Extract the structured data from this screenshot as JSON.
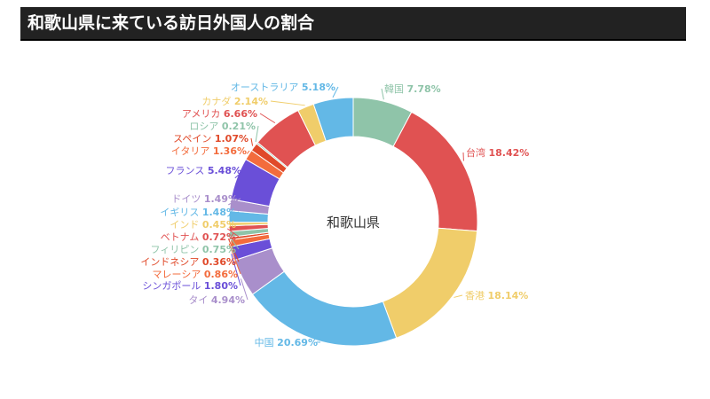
{
  "header": {
    "title": "和歌山県に来ている訪日外国人の割合"
  },
  "chart_data": {
    "type": "pie",
    "donut": true,
    "center_label": "和歌山県",
    "unit": "%",
    "slices": [
      {
        "name": "韓国",
        "value": 7.78,
        "color": "#8fc4a9"
      },
      {
        "name": "台湾",
        "value": 18.42,
        "color": "#e05252"
      },
      {
        "name": "香港",
        "value": 18.14,
        "color": "#f0cd6a"
      },
      {
        "name": "中国",
        "value": 20.69,
        "color": "#63b8e6"
      },
      {
        "name": "タイ",
        "value": 4.94,
        "color": "#a98fcb"
      },
      {
        "name": "シンガポール",
        "value": 1.8,
        "color": "#6a4fd8"
      },
      {
        "name": "マレーシア",
        "value": 0.86,
        "color": "#f36c3d"
      },
      {
        "name": "インドネシア",
        "value": 0.36,
        "color": "#e04a2a"
      },
      {
        "name": "フィリピン",
        "value": 0.75,
        "color": "#8fc4a9"
      },
      {
        "name": "ベトナム",
        "value": 0.72,
        "color": "#e05252"
      },
      {
        "name": "インド",
        "value": 0.45,
        "color": "#f0cd6a"
      },
      {
        "name": "イギリス",
        "value": 1.48,
        "color": "#63b8e6"
      },
      {
        "name": "ドイツ",
        "value": 1.49,
        "color": "#a98fcb"
      },
      {
        "name": "フランス",
        "value": 5.48,
        "color": "#6a4fd8"
      },
      {
        "name": "イタリア",
        "value": 1.36,
        "color": "#f36c3d"
      },
      {
        "name": "スペイン",
        "value": 1.07,
        "color": "#e04a2a"
      },
      {
        "name": "ロシア",
        "value": 0.21,
        "color": "#8fc4a9"
      },
      {
        "name": "アメリカ",
        "value": 6.66,
        "color": "#e05252"
      },
      {
        "name": "カナダ",
        "value": 2.14,
        "color": "#f0cd6a"
      },
      {
        "name": "オーストラリア",
        "value": 5.18,
        "color": "#63b8e6"
      }
    ]
  }
}
